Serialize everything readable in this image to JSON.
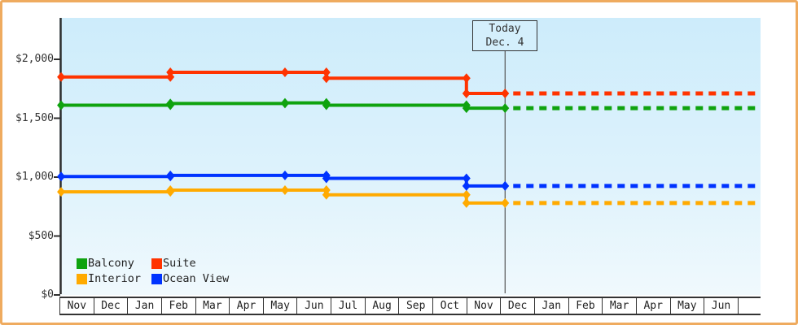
{
  "window": {
    "border_color": "#efab5f",
    "background": "#ffffff"
  },
  "chart": {
    "plot": {
      "bg_top": "#cdecfb",
      "bg_bottom": "#f0f9fd"
    },
    "y_axis": {
      "ticks": [
        {
          "label": "$2,000",
          "value": 2000
        },
        {
          "label": "$1,500",
          "value": 1500
        },
        {
          "label": "$1,000",
          "value": 1000
        },
        {
          "label": "$500",
          "value": 500
        },
        {
          "label": "$0",
          "value": 0
        }
      ]
    },
    "today": {
      "line1": "Today",
      "line2": "Dec. 4"
    },
    "legend": {
      "items": [
        {
          "label": "Balcony",
          "color": "#0fa30f"
        },
        {
          "label": "Suite",
          "color": "#ff3300"
        },
        {
          "label": "Interior",
          "color": "#ffaa00"
        },
        {
          "label": "Ocean View",
          "color": "#0033ff"
        }
      ]
    }
  },
  "chart_data": {
    "type": "line",
    "title": "",
    "x_months": [
      "Nov",
      "Dec",
      "Jan",
      "Feb",
      "Mar",
      "Apr",
      "May",
      "Jun",
      "Jul",
      "Aug",
      "Sep",
      "Oct",
      "Nov",
      "Dec",
      "Jan",
      "Feb",
      "Mar",
      "Apr",
      "May",
      "Jun"
    ],
    "y_tick_labels": [
      "$0",
      "$500",
      "$1,000",
      "$1,500",
      "$2,000"
    ],
    "y_ticks": [
      0,
      500,
      1000,
      1500,
      2000
    ],
    "ylim": [
      0,
      2352
    ],
    "xlim_months": [
      0,
      20.65
    ],
    "grid": false,
    "legend_position": "bottom-left",
    "today": {
      "label": "Today",
      "date": "Dec. 4",
      "month_position": 13.14
    },
    "event_positions_months": [
      0.05,
      3.27,
      6.65,
      7.87,
      12.0,
      13.14
    ],
    "series": [
      {
        "name": "Interior",
        "color": "#ffaa00",
        "values": [
          875,
          890,
          890,
          850,
          780,
          780
        ],
        "projected": 780
      },
      {
        "name": "Ocean View",
        "color": "#0033ff",
        "values": [
          1005,
          1015,
          1015,
          990,
          925,
          925
        ],
        "projected": 925
      },
      {
        "name": "Balcony",
        "color": "#0fa30f",
        "values": [
          1610,
          1625,
          1630,
          1610,
          1585,
          1585
        ],
        "projected": 1585
      },
      {
        "name": "Suite",
        "color": "#ff3300",
        "values": [
          1850,
          1890,
          1890,
          1840,
          1710,
          1710
        ],
        "projected": 1710
      }
    ]
  }
}
